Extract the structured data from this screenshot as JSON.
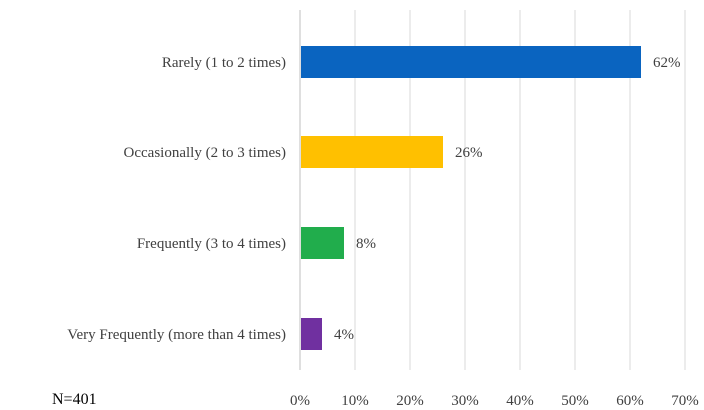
{
  "chart_data": {
    "type": "bar",
    "orientation": "horizontal",
    "categories": [
      "Rarely (1 to 2 times)",
      "Occasionally (2 to 3 times)",
      "Frequently (3 to 4 times)",
      "Very Frequently (more than 4 times)"
    ],
    "values": [
      62,
      26,
      8,
      4
    ],
    "data_labels": [
      "62%",
      "26%",
      "8%",
      "4%"
    ],
    "bar_colors": [
      "#0a64c0",
      "#ffc000",
      "#21ad4c",
      "#7030a0"
    ],
    "xlim": [
      0,
      70
    ],
    "x_ticks": [
      0,
      10,
      20,
      30,
      40,
      50,
      60,
      70
    ],
    "x_tick_labels": [
      "0%",
      "10%",
      "20%",
      "30%",
      "40%",
      "50%",
      "60%",
      "70%"
    ],
    "grid": true,
    "title": "",
    "xlabel": "",
    "ylabel": ""
  },
  "note": "N=401"
}
